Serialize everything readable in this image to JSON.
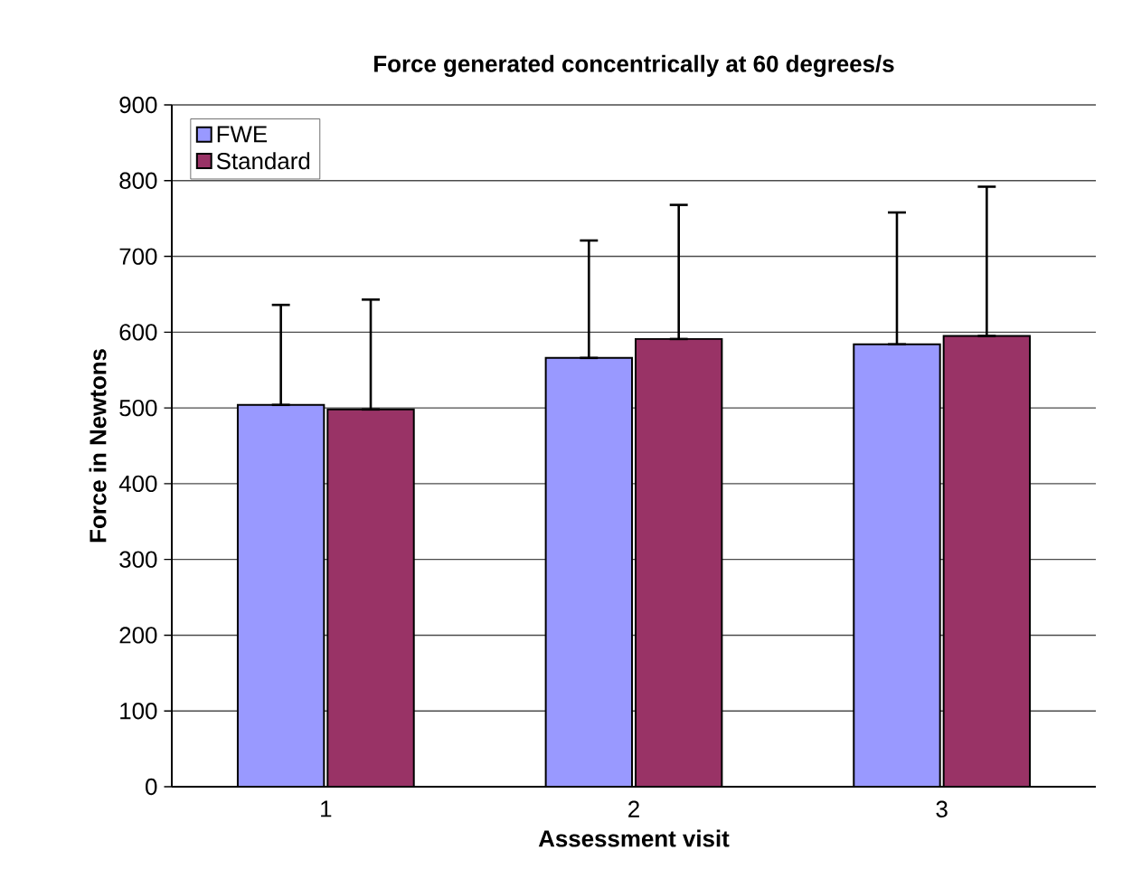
{
  "chart_data": {
    "type": "bar",
    "title": "Force generated concentrically at 60 degrees/s",
    "xlabel": "Assessment visit",
    "ylabel": "Force in Newtons",
    "categories": [
      "1",
      "2",
      "3"
    ],
    "series": [
      {
        "name": "FWE",
        "color": "#9999ff",
        "values": [
          504,
          566,
          584
        ],
        "errors": [
          [
            504,
            636
          ],
          [
            566,
            721
          ],
          [
            584,
            758
          ]
        ]
      },
      {
        "name": "Standard",
        "color": "#993366",
        "values": [
          498,
          591,
          595
        ],
        "errors": [
          [
            498,
            643
          ],
          [
            591,
            768
          ],
          [
            595,
            792
          ]
        ]
      }
    ],
    "ylim": [
      0,
      900
    ],
    "yticks": [
      0,
      100,
      200,
      300,
      400,
      500,
      600,
      700,
      800,
      900
    ],
    "grid": "y",
    "legend": "top left"
  }
}
